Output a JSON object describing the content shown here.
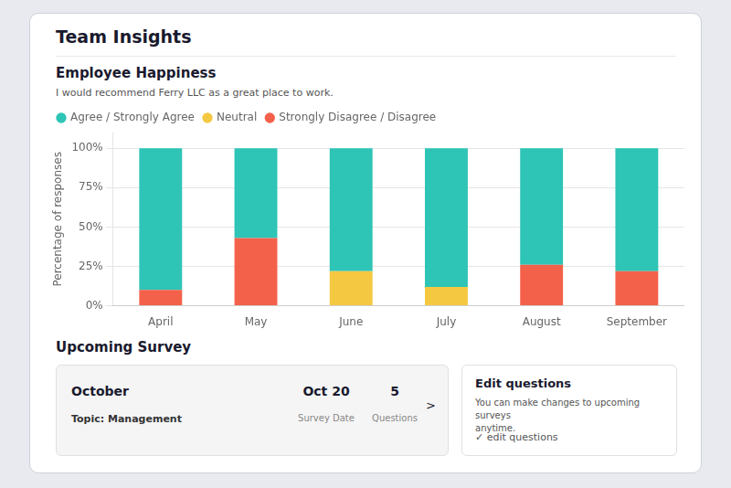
{
  "chart_data": {
    "type": "bar",
    "title": "Team Insights",
    "subtitle": "Employee Happiness",
    "annotations": [
      "I would recommend Ferry LLC as a great place to work.",
      "Upcoming Survey",
      "October",
      "Topic: Management",
      "Oct 20",
      "Survey Date",
      "5",
      "Questions",
      ">",
      "Edit questions",
      "You can make changes to upcoming surveys\nanytime.",
      "✓ edit questions"
    ],
    "categories": [
      "April",
      "May",
      "June",
      "July",
      "August",
      "September"
    ],
    "series": [
      {
        "name": "Strongly Disagree / Disagree",
        "color": "#f4614a",
        "values": [
          10,
          43,
          0,
          0,
          26,
          22
        ]
      },
      {
        "name": "Neutral",
        "color": "#f5c842",
        "values": [
          0,
          0,
          22,
          12,
          0,
          0
        ]
      },
      {
        "name": "Agree / Strongly Agree",
        "color": "#2ec4b6",
        "values": [
          90,
          57,
          78,
          88,
          74,
          78
        ]
      }
    ],
    "stacked": true,
    "y_label": "Percentage of responses",
    "ylim": [
      0,
      110
    ],
    "yticks": [
      {
        "value": 0,
        "label": "0%"
      },
      {
        "value": 25,
        "label": "25%"
      },
      {
        "value": 50,
        "label": "50%"
      },
      {
        "value": 75,
        "label": "75%"
      },
      {
        "value": 100,
        "label": "100%"
      }
    ],
    "grid": true,
    "legend": "top"
  }
}
